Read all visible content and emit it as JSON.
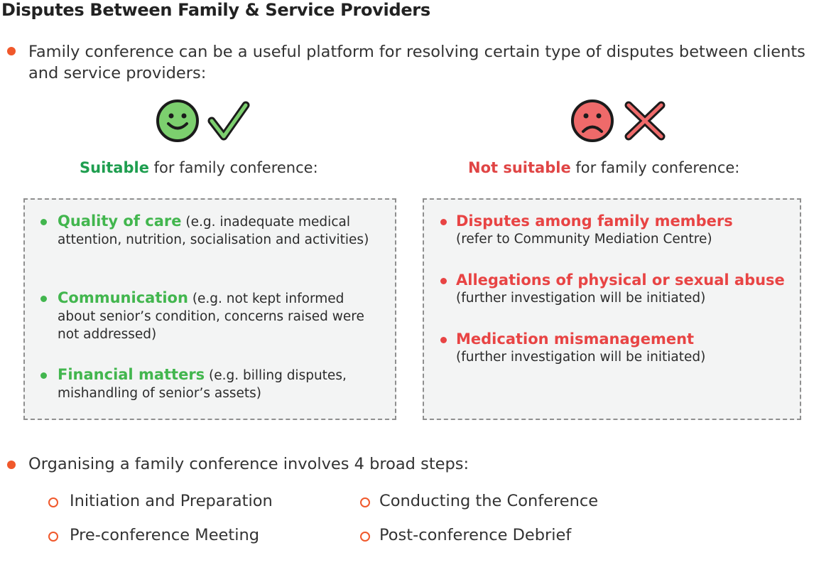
{
  "title": "Disputes Between Family & Service Providers",
  "intro": "Family conference can be a useful platform for resolving certain type of disputes between clients and service providers:",
  "suitable": {
    "heading_strong": "Suitable",
    "heading_rest": " for family conference:",
    "items": [
      {
        "lead": "Quality of care",
        "detail": " (e.g. inadequate medical attention, nutrition, socialisation and activities)"
      },
      {
        "lead": "Communication",
        "detail": " (e.g. not kept informed about senior’s condition, concerns raised were not addressed)"
      },
      {
        "lead": "Financial matters",
        "detail": " (e.g. billing disputes, mishandling of senior’s assets)"
      }
    ]
  },
  "not_suitable": {
    "heading_strong": "Not suitable",
    "heading_rest": " for family conference:",
    "items": [
      {
        "lead": "Disputes among family members",
        "detail": "(refer to Community Mediation Centre)"
      },
      {
        "lead": "Allegations of physical or sexual abuse",
        "detail": "(further investigation will be initiated)"
      },
      {
        "lead": "Medication mismanagement",
        "detail": "(further investigation will be initiated)"
      }
    ]
  },
  "steps_intro": "Organising a family conference involves 4 broad steps:",
  "steps": [
    "Initiation and Preparation",
    "Pre-conference Meeting",
    "Conducting the Conference",
    "Post-conference Debrief"
  ],
  "icons": {
    "happy": "smiley-face-icon",
    "check": "checkmark-icon",
    "sad": "sad-face-icon",
    "cross": "cross-icon"
  },
  "colors": {
    "bullet": "#f0582b",
    "good": "#42b64e",
    "bad": "#e84444"
  }
}
